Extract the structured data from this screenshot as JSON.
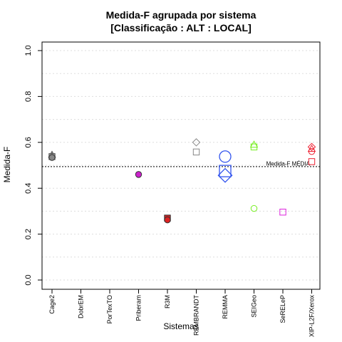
{
  "chart_data": {
    "type": "scatter",
    "title": "Medida-F agrupada por sistema",
    "subtitle": "[Classificação : ALT : LOCAL]",
    "xlabel": "Sistemas",
    "ylabel": "Medida-F",
    "ylim": [
      0,
      1
    ],
    "yticks": [
      "0.0",
      "0.2",
      "0.4",
      "0.6",
      "0.8",
      "1.0"
    ],
    "grid": true,
    "categories": [
      "Cage2",
      "DobrEM",
      "PorTexTO",
      "Priberam",
      "R3M",
      "REMBRANDT",
      "REMMA",
      "SEIGeo",
      "SeRELeP",
      "XIP-L2F/Xerox"
    ],
    "reference_line": {
      "value": 0.494,
      "label": "Medida-F MÉDIA"
    },
    "points": [
      {
        "system": "Cage2",
        "y": 0.546,
        "marker": "triangle",
        "color": "#555555",
        "fill": "#999999"
      },
      {
        "system": "Cage2",
        "y": 0.538,
        "marker": "square",
        "color": "#555555",
        "fill": "#999999"
      },
      {
        "system": "Cage2",
        "y": 0.534,
        "marker": "circle",
        "color": "#333333",
        "fill": "#888888"
      },
      {
        "system": "Priberam",
        "y": 0.46,
        "marker": "circle",
        "color": "#333333",
        "fill": "#cc22cc"
      },
      {
        "system": "R3M",
        "y": 0.27,
        "marker": "square",
        "color": "#333333",
        "fill": "#cc2222"
      },
      {
        "system": "R3M",
        "y": 0.262,
        "marker": "circle",
        "color": "#333333",
        "fill": "#dd2222"
      },
      {
        "system": "REMBRANDT",
        "y": 0.6,
        "marker": "diamond",
        "color": "#888888",
        "fill": "none"
      },
      {
        "system": "REMBRANDT",
        "y": 0.558,
        "marker": "square",
        "color": "#888888",
        "fill": "none"
      },
      {
        "system": "REMMA",
        "y": 0.538,
        "marker": "circle-large",
        "color": "#3355ee",
        "fill": "none"
      },
      {
        "system": "REMMA",
        "y": 0.475,
        "marker": "square-large",
        "color": "#3355ee",
        "fill": "none"
      },
      {
        "system": "REMMA",
        "y": 0.456,
        "marker": "diamond-large",
        "color": "#3355ee",
        "fill": "none"
      },
      {
        "system": "SEIGeo",
        "y": 0.59,
        "marker": "triangle",
        "color": "#77ee22",
        "fill": "none"
      },
      {
        "system": "SEIGeo",
        "y": 0.58,
        "marker": "square",
        "color": "#77ee22",
        "fill": "none"
      },
      {
        "system": "SEIGeo",
        "y": 0.312,
        "marker": "circle",
        "color": "#77ee22",
        "fill": "none"
      },
      {
        "system": "SeRELeP",
        "y": 0.296,
        "marker": "square",
        "color": "#dd22dd",
        "fill": "none"
      },
      {
        "system": "XIP-L2F/Xerox",
        "y": 0.58,
        "marker": "diamond",
        "color": "#ee2233",
        "fill": "none"
      },
      {
        "system": "XIP-L2F/Xerox",
        "y": 0.572,
        "marker": "triangle",
        "color": "#ee2233",
        "fill": "none"
      },
      {
        "system": "XIP-L2F/Xerox",
        "y": 0.56,
        "marker": "circle",
        "color": "#ee2233",
        "fill": "none"
      },
      {
        "system": "XIP-L2F/Xerox",
        "y": 0.516,
        "marker": "square",
        "color": "#ee2233",
        "fill": "none"
      }
    ]
  }
}
